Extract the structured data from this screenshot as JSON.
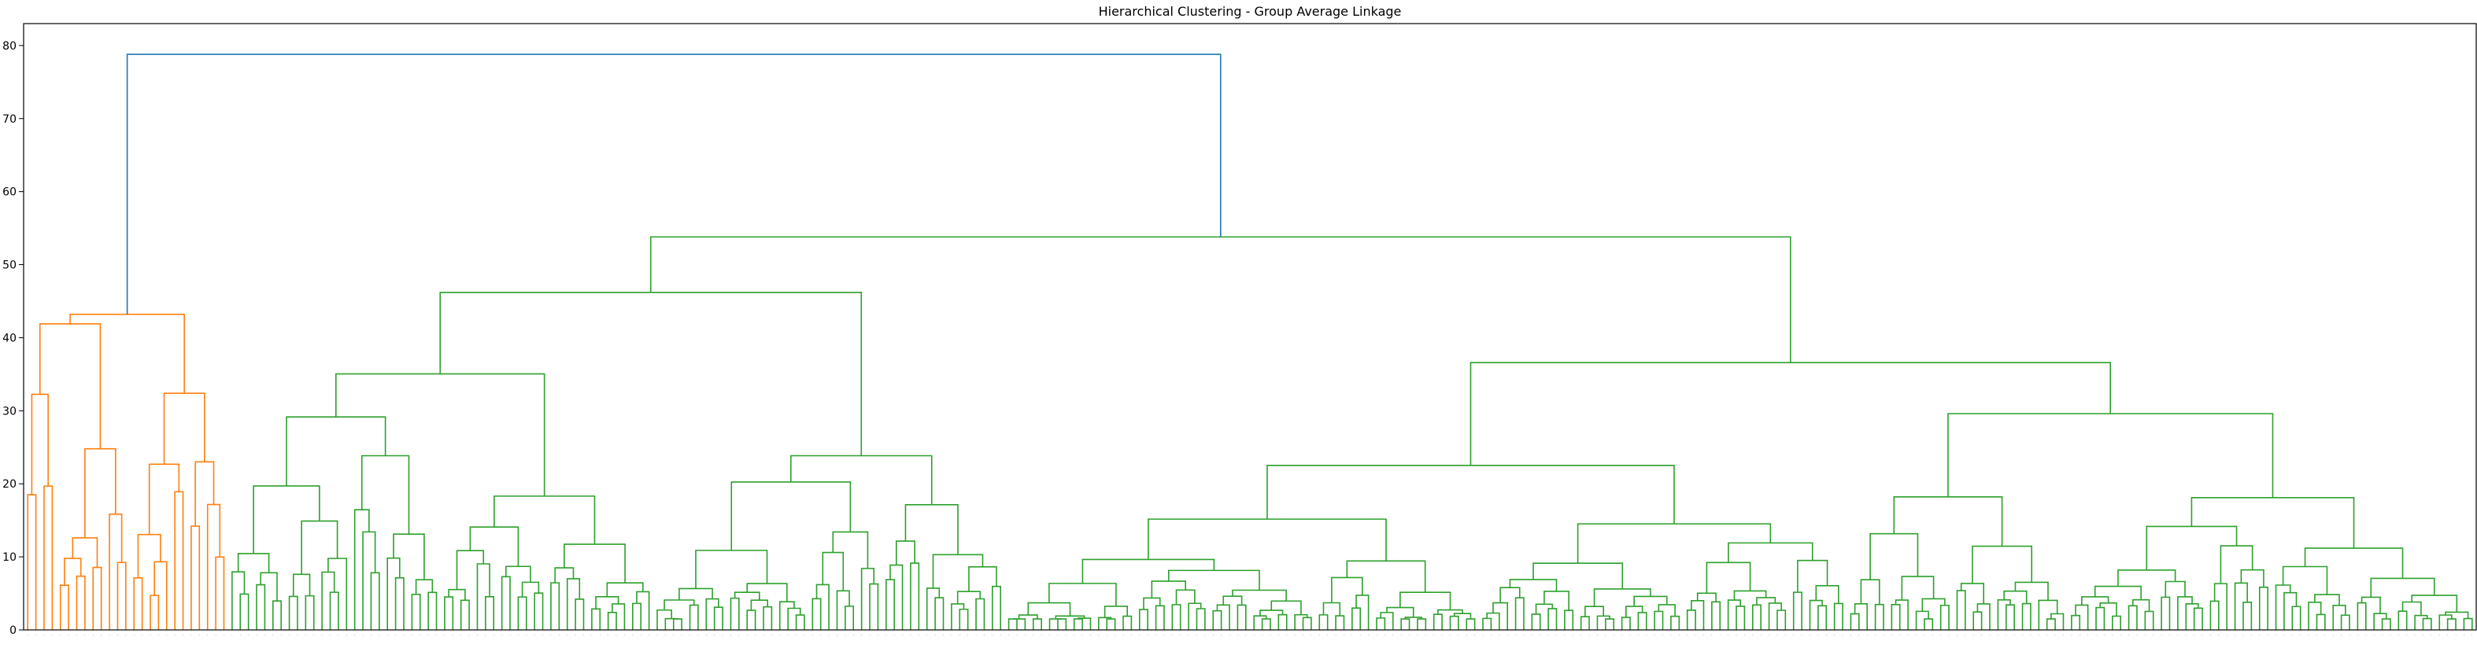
{
  "chart_data": {
    "type": "dendrogram",
    "title": "Hierarchical Clustering - Group Average Linkage",
    "xlabel": "",
    "ylabel": "",
    "ylim": [
      0,
      83
    ],
    "yticks": [
      0,
      10,
      20,
      30,
      40,
      50,
      60,
      70,
      80
    ],
    "grid": false,
    "legend": "none",
    "leaf_count": 300,
    "colors": {
      "root_link": "#1f77b4",
      "cluster_1": "#ff7f0e",
      "cluster_2": "#2ca02c"
    },
    "top_merges": [
      {
        "name": "root",
        "height": 78.8,
        "color": "#1f77b4"
      },
      {
        "name": "cluster_1",
        "height": 43.2,
        "color": "#ff7f0e"
      },
      {
        "name": "cluster_2",
        "height": 53.8,
        "color": "#2ca02c"
      },
      {
        "name": "cluster_2.left",
        "height": 46.2,
        "color": "#2ca02c"
      },
      {
        "name": "cluster_2.right",
        "height": 36.6,
        "color": "#2ca02c"
      },
      {
        "name": "cluster_1.left",
        "height": 41.9,
        "color": "#ff7f0e"
      },
      {
        "name": "cluster_1.right",
        "height": 43.2,
        "color": "#ff7f0e"
      }
    ]
  }
}
